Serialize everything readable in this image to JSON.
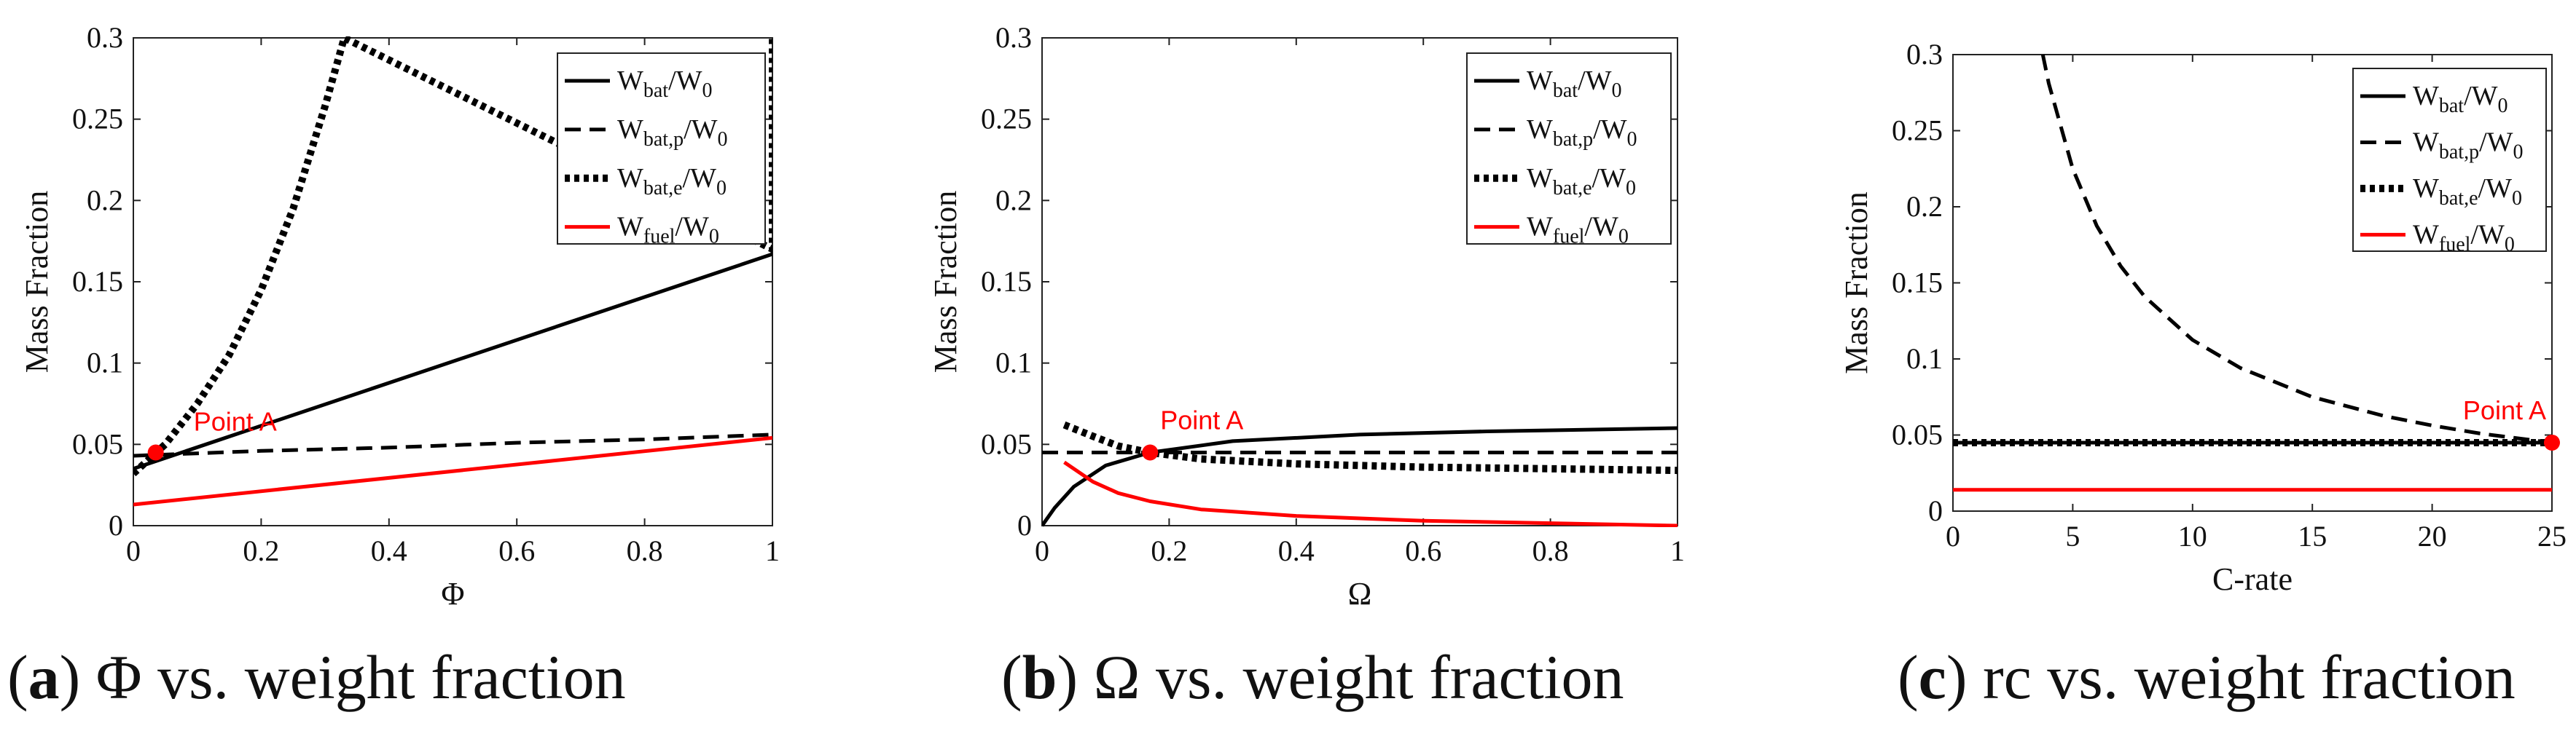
{
  "chart_data": [
    {
      "type": "line",
      "panel_letter": "a",
      "caption_suffix": "Φ vs. weight fraction",
      "xlabel": "Φ",
      "ylabel": "Mass Fraction",
      "xlim": [
        0,
        1
      ],
      "ylim": [
        0,
        0.3
      ],
      "xticks": [
        "0",
        "0.2",
        "0.4",
        "0.6",
        "0.8",
        "1"
      ],
      "xtick_values": [
        0,
        0.2,
        0.4,
        0.6,
        0.8,
        1
      ],
      "yticks": [
        "0",
        "0.05",
        "0.1",
        "0.15",
        "0.2",
        "0.25",
        "0.3"
      ],
      "ytick_values": [
        0,
        0.05,
        0.1,
        0.15,
        0.2,
        0.25,
        0.3
      ],
      "legend_position": "top-right",
      "series": [
        {
          "name": "W_bat/W_0",
          "style": "solid",
          "color": "#000000",
          "x": [
            0,
            1
          ],
          "y": [
            0.035,
            0.167
          ]
        },
        {
          "name": "W_bat,p/W_0",
          "style": "dashed",
          "color": "#000000",
          "x": [
            0,
            0.2,
            0.4,
            0.6,
            0.8,
            1
          ],
          "y": [
            0.043,
            0.046,
            0.048,
            0.051,
            0.053,
            0.056
          ]
        },
        {
          "name": "W_bat,e/W_0",
          "style": "dotted",
          "color": "#000000",
          "x": [
            0,
            0.05,
            0.1,
            0.15,
            0.2,
            0.25,
            0.3,
            0.33,
            1,
            1
          ],
          "y": [
            0.032,
            0.05,
            0.075,
            0.105,
            0.145,
            0.195,
            0.258,
            0.3,
            0.17,
            0.3
          ]
        },
        {
          "name": "W_fuel/W_0",
          "style": "solid",
          "color": "#ff0000",
          "x": [
            0,
            1
          ],
          "y": [
            0.013,
            0.054
          ]
        }
      ],
      "legend": [
        {
          "base": "W",
          "sub1": "bat",
          "mid": "/W",
          "sub2": "0",
          "style": "solid",
          "color": "#000000"
        },
        {
          "base": "W",
          "sub1": "bat,p",
          "mid": "/W",
          "sub2": "0",
          "style": "dashed",
          "color": "#000000"
        },
        {
          "base": "W",
          "sub1": "bat,e",
          "mid": "/W",
          "sub2": "0",
          "style": "dotted",
          "color": "#000000"
        },
        {
          "base": "W",
          "sub1": "fuel",
          "mid": "/W",
          "sub2": "0",
          "style": "solid",
          "color": "#ff0000"
        }
      ],
      "point": {
        "label": "Point A",
        "x": 0.035,
        "y": 0.045,
        "color": "#ff0000"
      }
    },
    {
      "type": "line",
      "panel_letter": "b",
      "caption_suffix": "Ω vs. weight fraction",
      "xlabel": "Ω",
      "ylabel": "Mass Fraction",
      "xlim": [
        0,
        1
      ],
      "ylim": [
        0,
        0.3
      ],
      "xticks": [
        "0",
        "0.2",
        "0.4",
        "0.6",
        "0.8",
        "1"
      ],
      "xtick_values": [
        0,
        0.2,
        0.4,
        0.6,
        0.8,
        1
      ],
      "yticks": [
        "0",
        "0.05",
        "0.1",
        "0.15",
        "0.2",
        "0.25",
        "0.3"
      ],
      "ytick_values": [
        0,
        0.05,
        0.1,
        0.15,
        0.2,
        0.25,
        0.3
      ],
      "legend_position": "top-right",
      "series": [
        {
          "name": "W_bat/W_0",
          "style": "solid",
          "color": "#000000",
          "x": [
            0,
            0.02,
            0.05,
            0.1,
            0.17,
            0.3,
            0.5,
            0.7,
            1
          ],
          "y": [
            0,
            0.011,
            0.024,
            0.037,
            0.045,
            0.052,
            0.056,
            0.058,
            0.06
          ]
        },
        {
          "name": "W_bat,p/W_0",
          "style": "dashed",
          "color": "#000000",
          "x": [
            0,
            1
          ],
          "y": [
            0.045,
            0.045
          ]
        },
        {
          "name": "W_bat,e/W_0",
          "style": "dotted",
          "color": "#000000",
          "x": [
            0.035,
            0.08,
            0.12,
            0.17,
            0.25,
            0.4,
            0.6,
            0.8,
            1
          ],
          "y": [
            0.062,
            0.055,
            0.049,
            0.045,
            0.041,
            0.038,
            0.036,
            0.035,
            0.034
          ]
        },
        {
          "name": "W_fuel/W_0",
          "style": "solid",
          "color": "#ff0000",
          "x": [
            0.035,
            0.08,
            0.12,
            0.17,
            0.25,
            0.4,
            0.6,
            0.8,
            1
          ],
          "y": [
            0.039,
            0.027,
            0.02,
            0.015,
            0.01,
            0.006,
            0.003,
            0.0015,
            0
          ]
        }
      ],
      "legend": [
        {
          "base": "W",
          "sub1": "bat",
          "mid": "/W",
          "sub2": "0",
          "style": "solid",
          "color": "#000000"
        },
        {
          "base": "W",
          "sub1": "bat,p",
          "mid": "/W",
          "sub2": "0",
          "style": "dashed",
          "color": "#000000"
        },
        {
          "base": "W",
          "sub1": "bat,e",
          "mid": "/W",
          "sub2": "0",
          "style": "dotted",
          "color": "#000000"
        },
        {
          "base": "W",
          "sub1": "fuel",
          "mid": "/W",
          "sub2": "0",
          "style": "solid",
          "color": "#ff0000"
        }
      ],
      "point": {
        "label": "Point A",
        "x": 0.17,
        "y": 0.045,
        "color": "#ff0000"
      }
    },
    {
      "type": "line",
      "panel_letter": "c",
      "caption_suffix": "rc vs. weight fraction",
      "xlabel": "C-rate",
      "ylabel": "Mass Fraction",
      "xlim": [
        0,
        25
      ],
      "ylim": [
        0,
        0.3
      ],
      "xticks": [
        "0",
        "5",
        "10",
        "15",
        "20",
        "25"
      ],
      "xtick_values": [
        0,
        5,
        10,
        15,
        20,
        25
      ],
      "yticks": [
        "0",
        "0.05",
        "0.1",
        "0.15",
        "0.2",
        "0.25",
        "0.3"
      ],
      "ytick_values": [
        0,
        0.05,
        0.1,
        0.15,
        0.2,
        0.25,
        0.3
      ],
      "legend_position": "top-right",
      "series": [
        {
          "name": "W_bat/W_0",
          "style": "solid",
          "color": "#000000",
          "x": [
            0,
            25
          ],
          "y": [
            0.045,
            0.045
          ]
        },
        {
          "name": "W_bat,p/W_0",
          "style": "dashed",
          "color": "#000000",
          "x": [
            3.75,
            4,
            5,
            6,
            7,
            8,
            10,
            12,
            15,
            18,
            20,
            22,
            25
          ],
          "y": [
            0.3,
            0.281,
            0.225,
            0.1875,
            0.161,
            0.141,
            0.1125,
            0.094,
            0.075,
            0.0625,
            0.05625,
            0.051,
            0.045
          ]
        },
        {
          "name": "W_bat,e/W_0",
          "style": "dotted",
          "color": "#000000",
          "x": [
            0,
            25
          ],
          "y": [
            0.045,
            0.045
          ]
        },
        {
          "name": "W_fuel/W_0",
          "style": "solid",
          "color": "#ff0000",
          "x": [
            0,
            25
          ],
          "y": [
            0.014,
            0.014
          ]
        }
      ],
      "legend": [
        {
          "base": "W",
          "sub1": "bat",
          "mid": "/W",
          "sub2": "0",
          "style": "solid",
          "color": "#000000"
        },
        {
          "base": "W",
          "sub1": "bat,p",
          "mid": "/W",
          "sub2": "0",
          "style": "dashed",
          "color": "#000000"
        },
        {
          "base": "W",
          "sub1": "bat,e",
          "mid": "/W",
          "sub2": "0",
          "style": "dotted",
          "color": "#000000"
        },
        {
          "base": "W",
          "sub1": "fuel",
          "mid": "/W",
          "sub2": "0",
          "style": "solid",
          "color": "#ff0000"
        }
      ],
      "point": {
        "label": "Point A",
        "x": 25,
        "y": 0.045,
        "color": "#ff0000"
      }
    }
  ]
}
